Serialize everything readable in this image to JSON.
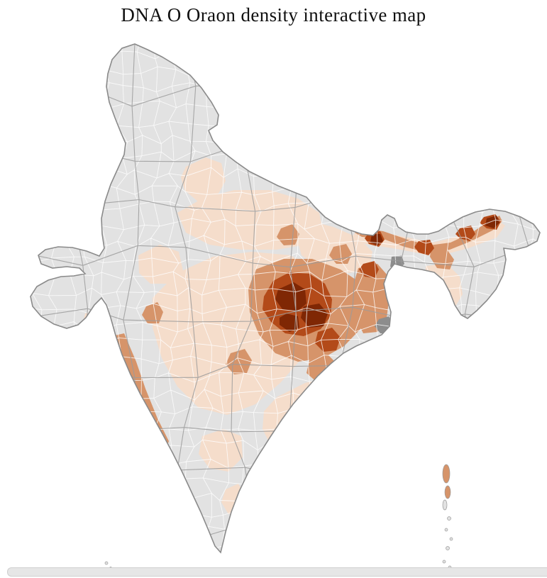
{
  "title": "DNA O Oraon density interactive map",
  "map": {
    "description": "India district-level choropleth of Oraon population density",
    "colors": {
      "sea": "#ffffff",
      "no_data": "#e2e2e2",
      "low": "#f5ddcb",
      "medium": "#d6946a",
      "high": "#b34a19",
      "very_high": "#7f2704",
      "district_border": "#ffffff",
      "state_border": "#9b9b9b",
      "outline": "#8a8a8a",
      "urban_gray": "#8d8d8d"
    },
    "regions": [
      {
        "id": "chota-nagpur-core",
        "level": "very_high"
      },
      {
        "id": "jharkhand-chhattisgarh-belt",
        "level": "high"
      },
      {
        "id": "eastern-india-surround",
        "level": "medium"
      },
      {
        "id": "brahmaputra-valley",
        "level": "medium"
      },
      {
        "id": "upper-assam-patches",
        "level": "high"
      },
      {
        "id": "north-bengal-duars",
        "level": "high"
      },
      {
        "id": "arunachal-east-tip",
        "level": "very_high"
      },
      {
        "id": "west-bengal-strip",
        "level": "medium"
      },
      {
        "id": "konkan-goa-coast",
        "level": "medium"
      },
      {
        "id": "uttar-pradesh-plain",
        "level": "low"
      },
      {
        "id": "central-india-plain",
        "level": "low"
      },
      {
        "id": "bihar-plain",
        "level": "low"
      },
      {
        "id": "odisha-andhra-coast",
        "level": "low"
      },
      {
        "id": "south-deccan-patch",
        "level": "low"
      },
      {
        "id": "kolkata-district",
        "level": "urban_gray"
      },
      {
        "id": "andaman-islands",
        "level": "medium"
      }
    ]
  },
  "scrollbar": {
    "orientation": "horizontal"
  }
}
